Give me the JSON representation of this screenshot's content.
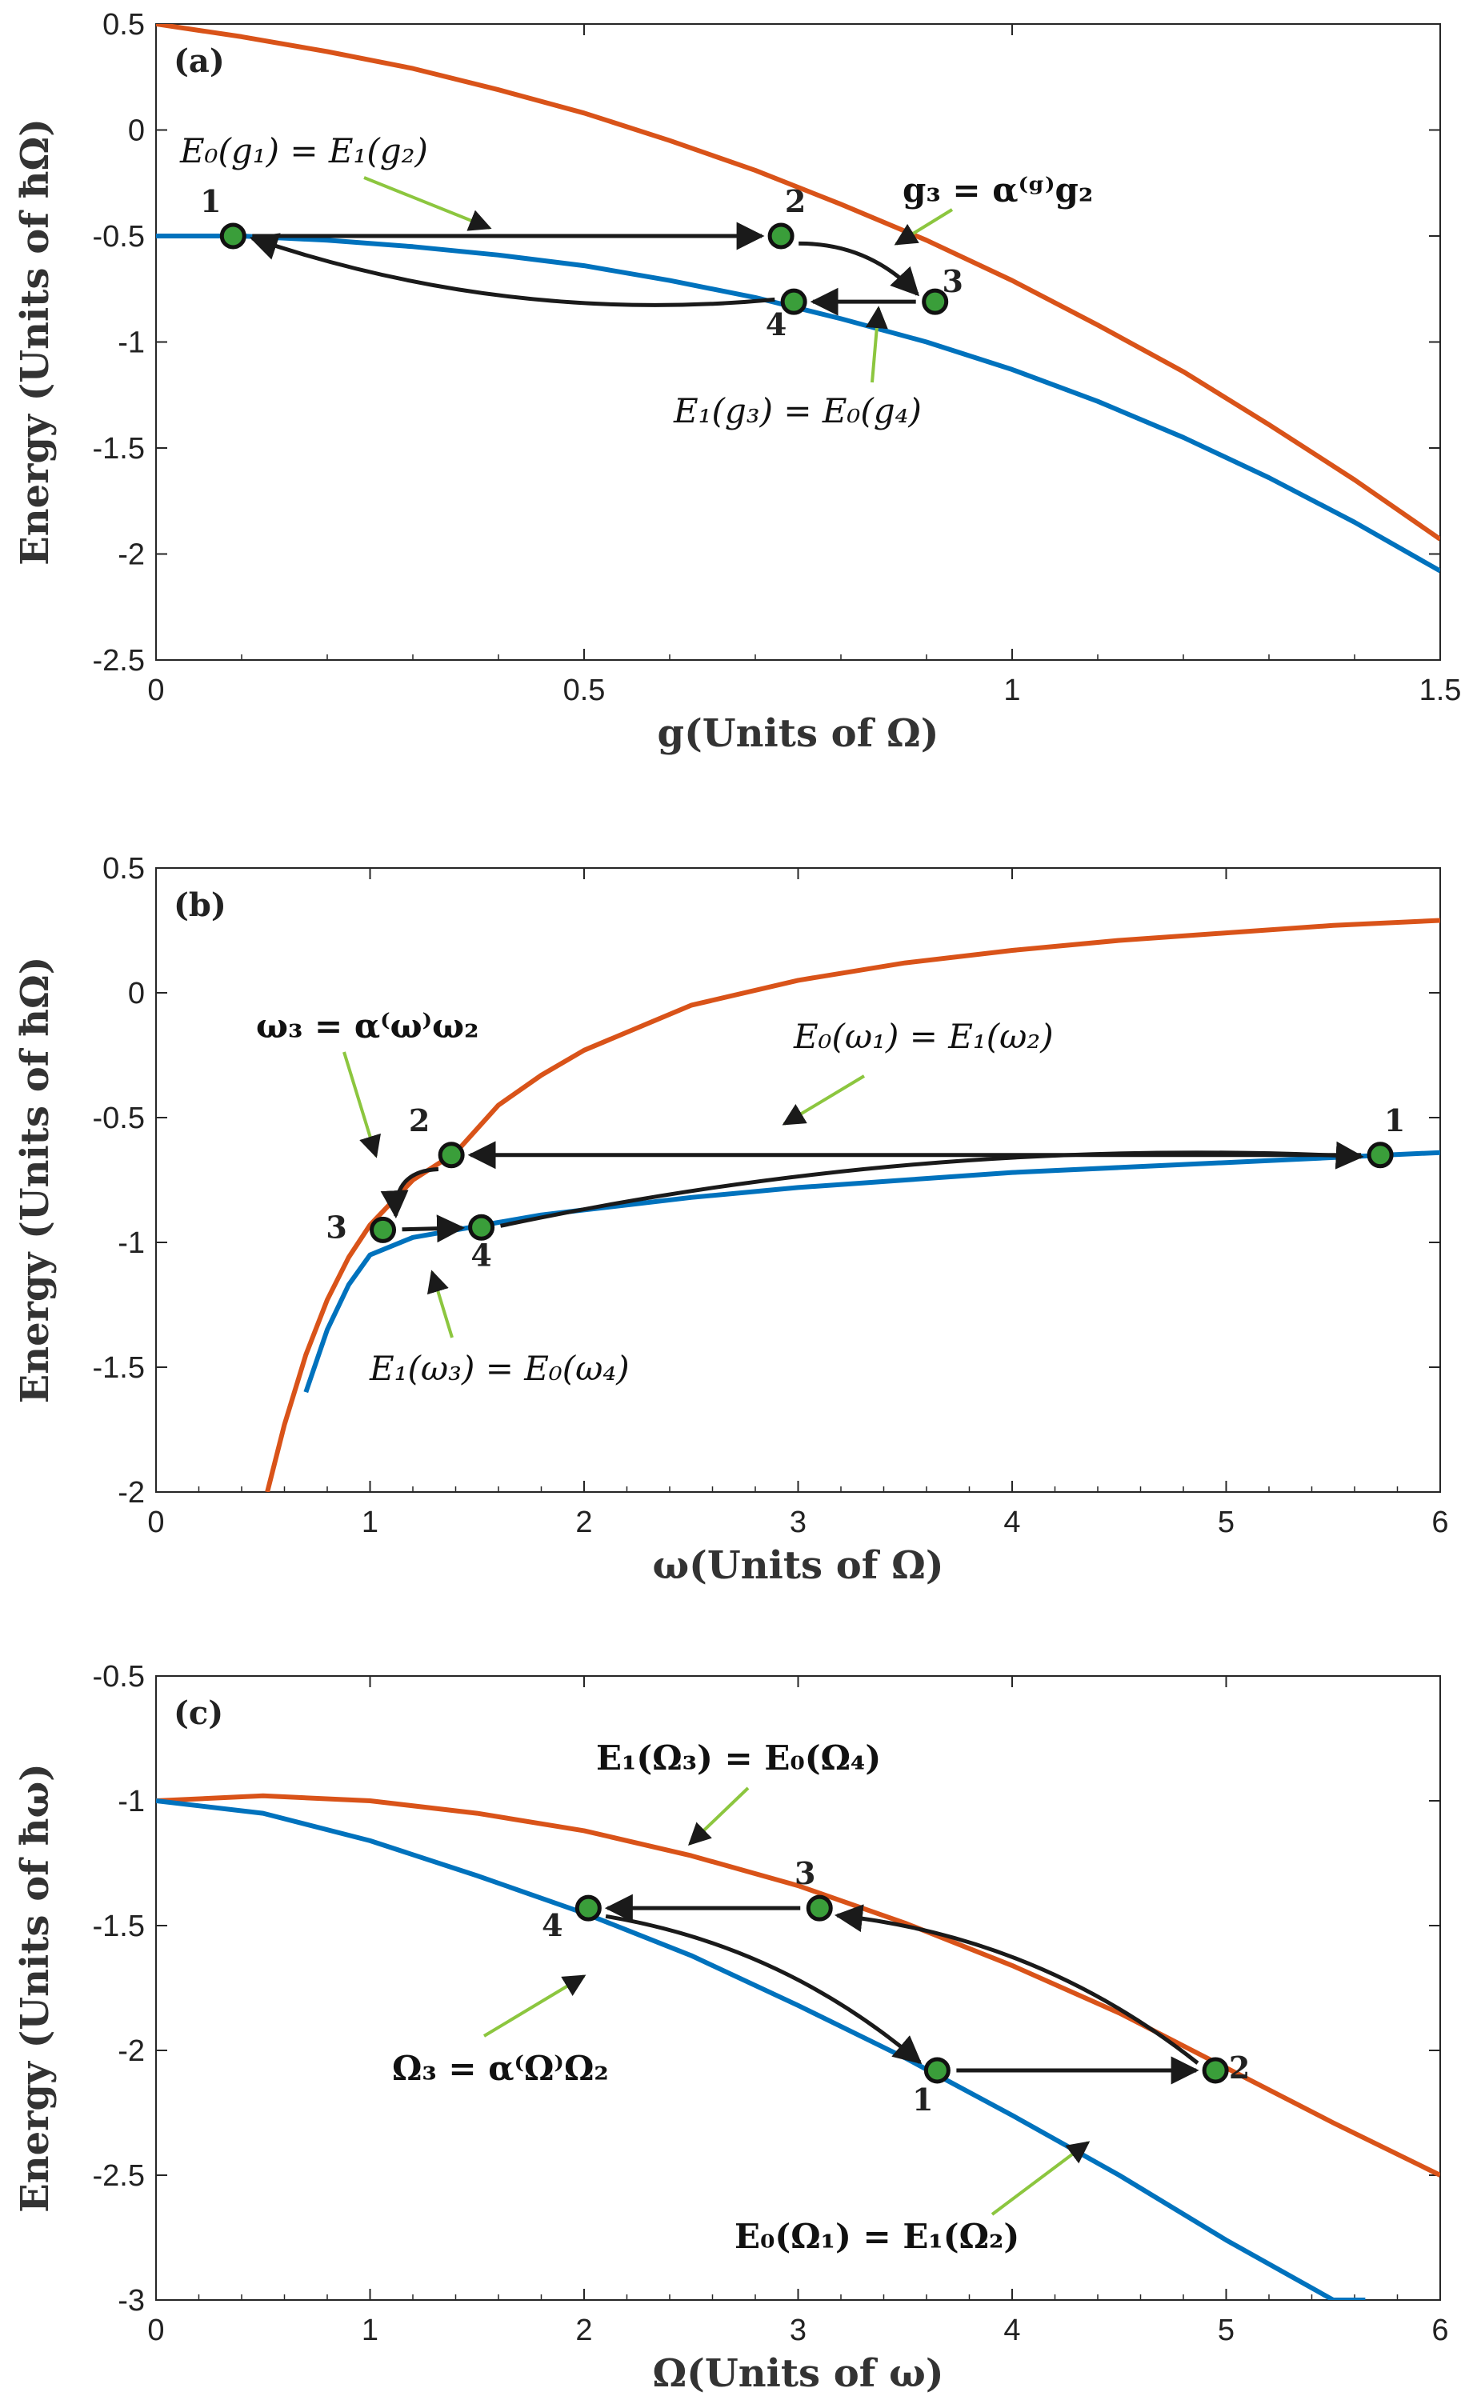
{
  "chart_data": [
    {
      "type": "line",
      "panel_label": "(a)",
      "xlabel": "g(Units of Ω)",
      "ylabel": "Energy (Units of ħΩ)",
      "xlim": [
        0,
        1.5
      ],
      "ylim": [
        -2.5,
        0.5
      ],
      "xticks": [
        0,
        0.5,
        1,
        1.5
      ],
      "xtick_labels": [
        "0",
        "0.5",
        "1",
        "1.5"
      ],
      "yticks": [
        0.5,
        0,
        -0.5,
        -1,
        -1.5,
        -2,
        -2.5
      ],
      "ytick_labels": [
        "0.5",
        "0",
        "-0.5",
        "-1",
        "-1.5",
        "-2",
        "-2.5"
      ],
      "grid": false,
      "series": [
        {
          "color": "#d95319",
          "x": [
            0,
            0.1,
            0.2,
            0.3,
            0.4,
            0.5,
            0.6,
            0.7,
            0.8,
            0.9,
            1.0,
            1.1,
            1.2,
            1.3,
            1.4,
            1.5
          ],
          "y": [
            0.5,
            0.44,
            0.37,
            0.29,
            0.19,
            0.08,
            -0.05,
            -0.19,
            -0.35,
            -0.52,
            -0.71,
            -0.92,
            -1.14,
            -1.39,
            -1.65,
            -1.93
          ]
        },
        {
          "color": "#0072bd",
          "x": [
            0,
            0.1,
            0.2,
            0.3,
            0.4,
            0.5,
            0.6,
            0.7,
            0.8,
            0.9,
            1.0,
            1.1,
            1.2,
            1.3,
            1.4,
            1.5
          ],
          "y": [
            -0.5,
            -0.5,
            -0.52,
            -0.55,
            -0.59,
            -0.64,
            -0.71,
            -0.79,
            -0.89,
            -1.0,
            -1.13,
            -1.28,
            -1.45,
            -1.64,
            -1.85,
            -2.08
          ]
        }
      ],
      "points": [
        {
          "label": "1",
          "x": 0.09,
          "y": -0.5
        },
        {
          "label": "2",
          "x": 0.73,
          "y": -0.5
        },
        {
          "label": "3",
          "x": 0.91,
          "y": -0.81
        },
        {
          "label": "4",
          "x": 0.745,
          "y": -0.81
        }
      ],
      "annotations": [
        {
          "text": "E₀(g₁) = E₁(g₂)",
          "bold": false
        },
        {
          "text": "g₃ = α⁽ᵍ⁾g₂",
          "bold": true
        },
        {
          "text": "E₁(g₃) = E₀(g₄)",
          "bold": false
        }
      ]
    },
    {
      "type": "line",
      "panel_label": "(b)",
      "xlabel": "ω(Units of Ω)",
      "ylabel": "Energy (Units of ħΩ)",
      "xlim": [
        0,
        6
      ],
      "ylim": [
        -2,
        0.5
      ],
      "xticks": [
        0,
        1,
        2,
        3,
        4,
        5,
        6
      ],
      "xtick_labels": [
        "0",
        "1",
        "2",
        "3",
        "4",
        "5",
        "6"
      ],
      "yticks": [
        0.5,
        0,
        -0.5,
        -1,
        -1.5,
        -2
      ],
      "ytick_labels": [
        "0.5",
        "0",
        "-0.5",
        "-1",
        "-1.5",
        "-2"
      ],
      "grid": false,
      "series": [
        {
          "color": "#d95319",
          "x": [
            0.52,
            0.6,
            0.7,
            0.8,
            0.9,
            1.0,
            1.2,
            1.4,
            1.6,
            1.8,
            2.0,
            2.5,
            3.0,
            3.5,
            4.0,
            4.5,
            5.0,
            5.5,
            6.0
          ],
          "y": [
            -2.0,
            -1.73,
            -1.45,
            -1.23,
            -1.06,
            -0.93,
            -0.75,
            -0.64,
            -0.45,
            -0.33,
            -0.23,
            -0.05,
            0.05,
            0.12,
            0.17,
            0.21,
            0.24,
            0.27,
            0.29
          ]
        },
        {
          "color": "#0072bd",
          "x": [
            0.7,
            0.8,
            0.9,
            1.0,
            1.2,
            1.4,
            1.6,
            1.8,
            2.0,
            2.5,
            3.0,
            3.5,
            4.0,
            4.5,
            5.0,
            5.5,
            6.0
          ],
          "y": [
            -1.6,
            -1.35,
            -1.17,
            -1.05,
            -0.98,
            -0.95,
            -0.92,
            -0.89,
            -0.87,
            -0.82,
            -0.78,
            -0.75,
            -0.72,
            -0.7,
            -0.68,
            -0.66,
            -0.64
          ]
        }
      ],
      "points": [
        {
          "label": "1",
          "x": 5.72,
          "y": -0.65
        },
        {
          "label": "2",
          "x": 1.38,
          "y": -0.65
        },
        {
          "label": "3",
          "x": 1.06,
          "y": -0.95
        },
        {
          "label": "4",
          "x": 1.52,
          "y": -0.94
        }
      ],
      "annotations": [
        {
          "text": "ω₃ = α⁽ω⁾ω₂",
          "bold": true
        },
        {
          "text": "E₀(ω₁) = E₁(ω₂)",
          "bold": false
        },
        {
          "text": "E₁(ω₃) = E₀(ω₄)",
          "bold": false
        }
      ]
    },
    {
      "type": "line",
      "panel_label": "(c)",
      "xlabel": "Ω(Units of ω)",
      "ylabel": "Energy (Units of ħω)",
      "xlim": [
        0,
        6
      ],
      "ylim": [
        -3,
        -0.5
      ],
      "xticks": [
        0,
        1,
        2,
        3,
        4,
        5,
        6
      ],
      "xtick_labels": [
        "0",
        "1",
        "2",
        "3",
        "4",
        "5",
        "6"
      ],
      "yticks": [
        -0.5,
        -1,
        -1.5,
        -2,
        -2.5,
        -3
      ],
      "ytick_labels": [
        "-0.5",
        "-1",
        "-1.5",
        "-2",
        "-2.5",
        "-3"
      ],
      "grid": false,
      "series": [
        {
          "color": "#d95319",
          "x": [
            0,
            0.5,
            1.0,
            1.5,
            2.0,
            2.5,
            3.0,
            3.5,
            4.0,
            4.5,
            5.0,
            5.5,
            6.0
          ],
          "y": [
            -1.0,
            -0.98,
            -1.0,
            -1.05,
            -1.12,
            -1.22,
            -1.34,
            -1.49,
            -1.66,
            -1.85,
            -2.07,
            -2.29,
            -2.5
          ]
        },
        {
          "color": "#0072bd",
          "x": [
            0,
            0.5,
            1.0,
            1.5,
            2.0,
            2.5,
            3.0,
            3.5,
            4.0,
            4.5,
            5.0,
            5.5,
            5.65
          ],
          "y": [
            -1.0,
            -1.05,
            -1.16,
            -1.3,
            -1.45,
            -1.62,
            -1.82,
            -2.03,
            -2.26,
            -2.5,
            -2.76,
            -3.0,
            -3.0
          ]
        }
      ],
      "points": [
        {
          "label": "1",
          "x": 3.65,
          "y": -2.08
        },
        {
          "label": "2",
          "x": 4.95,
          "y": -2.08
        },
        {
          "label": "3",
          "x": 3.1,
          "y": -1.43
        },
        {
          "label": "4",
          "x": 2.02,
          "y": -1.43
        }
      ],
      "annotations": [
        {
          "text": "E₁(Ω₃) = E₀(Ω₄)",
          "bold": true
        },
        {
          "text": "Ω₃ = α⁽Ω⁾Ω₂",
          "bold": true
        },
        {
          "text": "E₀(Ω₁) = E₁(Ω₂)",
          "bold": true
        }
      ]
    }
  ]
}
